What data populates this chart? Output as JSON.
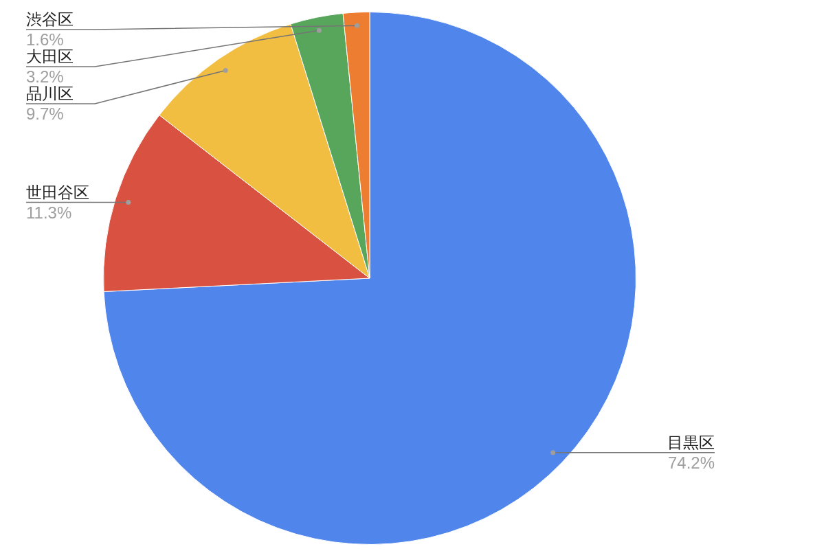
{
  "chart_data": {
    "type": "pie",
    "categories": [
      "目黒区",
      "世田谷区",
      "品川区",
      "大田区",
      "渋谷区"
    ],
    "values": [
      74.2,
      11.3,
      9.7,
      3.2,
      1.6
    ],
    "colors": [
      "#5086ec",
      "#d95140",
      "#f2be42",
      "#58a65c",
      "#ed7d31"
    ],
    "value_labels": [
      "74.2%",
      "11.3%",
      "9.7%",
      "3.2%",
      "1.6%"
    ]
  }
}
